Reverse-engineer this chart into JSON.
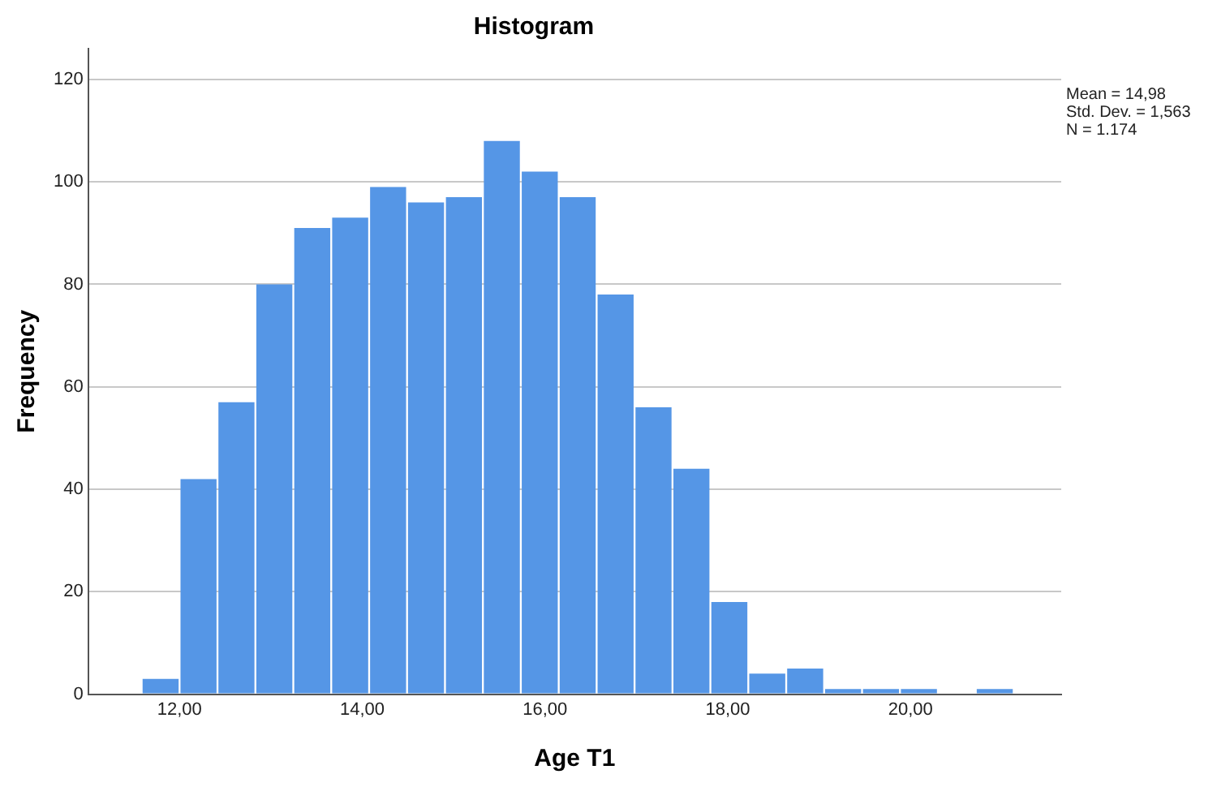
{
  "chart_data": {
    "type": "histogram",
    "title": "Histogram",
    "xlabel": "Age T1",
    "ylabel": "Frequency",
    "bins": [
      11.585,
      12.0,
      12.415,
      12.83,
      13.245,
      13.66,
      14.075,
      14.49,
      14.905,
      15.32,
      15.735,
      16.15,
      16.565,
      16.98,
      17.395,
      17.81,
      18.225,
      18.64,
      19.055,
      19.47,
      19.885,
      20.3,
      20.715,
      21.13
    ],
    "values": [
      3,
      42,
      57,
      80,
      91,
      93,
      99,
      96,
      97,
      108,
      102,
      97,
      78,
      56,
      44,
      18,
      4,
      5,
      1,
      1,
      1,
      0,
      1
    ],
    "color": "#5596e6",
    "xlim": [
      11.0,
      21.65
    ],
    "xticks": [
      {
        "value": 12,
        "label": "12,00"
      },
      {
        "value": 14,
        "label": "14,00"
      },
      {
        "value": 16,
        "label": "16,00"
      },
      {
        "value": 18,
        "label": "18,00"
      },
      {
        "value": 20,
        "label": "20,00"
      }
    ],
    "ylim": [
      0,
      126
    ],
    "yticks": [
      0,
      20,
      40,
      60,
      80,
      100,
      120
    ],
    "grid": "y",
    "legend": false,
    "annotations": [
      "Mean = 14,98",
      "Std. Dev. = 1,563",
      "N = 1.174"
    ]
  }
}
